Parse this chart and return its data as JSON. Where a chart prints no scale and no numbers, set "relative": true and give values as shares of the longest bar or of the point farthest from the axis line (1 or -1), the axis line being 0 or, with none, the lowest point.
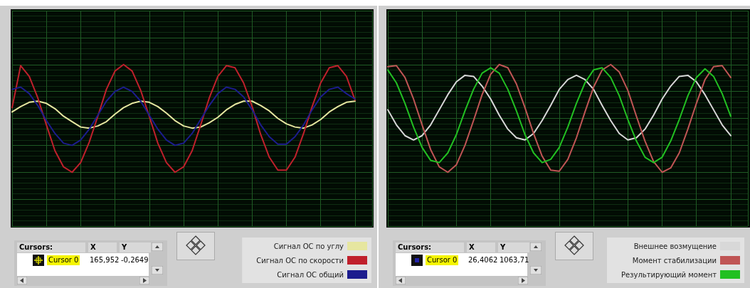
{
  "chart_data": [
    {
      "type": "line",
      "relative": true,
      "grid": true,
      "legend": "bottom right",
      "marker": "none",
      "line_style": "solid",
      "categories": [
        null,
        null,
        null,
        null,
        null,
        null,
        null,
        null,
        null,
        null,
        null,
        null,
        null,
        null,
        null,
        null,
        null,
        null,
        null,
        null,
        null,
        null,
        null,
        null,
        null,
        null,
        null,
        null,
        null,
        null,
        null,
        null,
        null,
        null,
        null,
        null,
        null,
        null,
        null,
        null,
        null,
        null,
        null
      ],
      "series": [
        {
          "name": "Сигнал ОС по углу",
          "color": "#e6e6a0",
          "values": [
            0.56,
            0.61,
            0.65,
            0.66,
            0.64,
            0.59,
            0.52,
            0.47,
            0.42,
            0.41,
            0.43,
            0.47,
            0.54,
            0.6,
            0.64,
            0.66,
            0.65,
            0.61,
            0.55,
            0.48,
            0.43,
            0.41,
            0.42,
            0.46,
            0.51,
            0.58,
            0.63,
            0.66,
            0.66,
            0.62,
            0.57,
            0.5,
            0.45,
            0.42,
            0.41,
            0.44,
            0.49,
            0.56,
            0.61,
            0.65,
            0.66,
            null,
            null
          ]
        },
        {
          "name": "Сигнал ОС по скорости",
          "color": "#c0202c",
          "values": [
            0.6,
            0.99,
            0.89,
            0.69,
            0.44,
            0.2,
            0.05,
            0.0,
            0.09,
            0.28,
            0.52,
            0.77,
            0.94,
            1.0,
            0.94,
            0.76,
            0.52,
            0.27,
            0.09,
            0.0,
            0.05,
            0.2,
            0.44,
            0.69,
            0.89,
            0.99,
            0.97,
            0.83,
            0.61,
            0.35,
            0.14,
            0.02,
            0.02,
            0.14,
            0.36,
            0.61,
            0.83,
            0.97,
            0.99,
            0.89,
            0.67,
            null,
            null
          ]
        },
        {
          "name": "Сигнал ОС общий",
          "color": "#1c1c8e",
          "values": [
            0.77,
            0.79,
            0.73,
            0.62,
            0.48,
            0.36,
            0.27,
            0.25,
            0.3,
            0.4,
            0.53,
            0.66,
            0.75,
            0.79,
            0.75,
            0.66,
            0.53,
            0.4,
            0.3,
            0.25,
            0.27,
            0.36,
            0.49,
            0.62,
            0.73,
            0.79,
            0.77,
            0.7,
            0.58,
            0.44,
            0.33,
            0.26,
            0.26,
            0.33,
            0.44,
            0.58,
            0.7,
            0.77,
            0.79,
            0.73,
            0.68,
            null,
            null
          ]
        }
      ],
      "annotations": [
        "Cursors:",
        "X",
        "Y",
        "Cursor 0",
        "165,952",
        "-0,2649"
      ]
    },
    {
      "type": "line",
      "relative": true,
      "grid": true,
      "legend": "bottom right",
      "marker": "none",
      "line_style": "solid",
      "categories": [
        null,
        null,
        null,
        null,
        null,
        null,
        null,
        null,
        null,
        null,
        null,
        null,
        null,
        null,
        null,
        null,
        null,
        null,
        null,
        null,
        null,
        null,
        null,
        null,
        null,
        null,
        null,
        null,
        null,
        null,
        null,
        null,
        null,
        null,
        null,
        null,
        null,
        null,
        null,
        null,
        null,
        null,
        null
      ],
      "series": [
        {
          "name": "Внешнее возмущение",
          "color": "#d8d8d8",
          "values": [
            0.58,
            0.44,
            0.34,
            0.3,
            0.34,
            0.44,
            0.58,
            0.72,
            0.84,
            0.9,
            0.89,
            0.8,
            0.68,
            0.53,
            0.4,
            0.32,
            0.3,
            0.36,
            0.48,
            0.62,
            0.77,
            0.86,
            0.9,
            0.86,
            0.77,
            0.62,
            0.48,
            0.36,
            0.3,
            0.32,
            0.4,
            0.53,
            0.68,
            0.8,
            0.89,
            0.9,
            0.84,
            0.72,
            0.58,
            0.44,
            0.34,
            null,
            null
          ]
        },
        {
          "name": "Момент стабилизации",
          "color": "#c05555",
          "values": [
            0.98,
            0.99,
            0.88,
            0.68,
            0.44,
            0.21,
            0.05,
            0.0,
            0.07,
            0.25,
            0.48,
            0.72,
            0.91,
            1.0,
            0.97,
            0.82,
            0.6,
            0.36,
            0.15,
            0.02,
            0.01,
            0.12,
            0.32,
            0.56,
            0.79,
            0.95,
            1.0,
            0.93,
            0.76,
            0.52,
            0.29,
            0.1,
            0.0,
            0.04,
            0.18,
            0.4,
            0.64,
            0.86,
            0.98,
            0.99,
            0.88,
            null,
            null
          ]
        },
        {
          "name": "Результирующий момент",
          "color": "#22c022",
          "values": [
            0.95,
            0.83,
            0.64,
            0.42,
            0.23,
            0.11,
            0.09,
            0.18,
            0.35,
            0.57,
            0.77,
            0.92,
            0.97,
            0.92,
            0.77,
            0.57,
            0.35,
            0.18,
            0.09,
            0.12,
            0.23,
            0.42,
            0.64,
            0.83,
            0.95,
            0.97,
            0.88,
            0.71,
            0.49,
            0.29,
            0.14,
            0.09,
            0.14,
            0.29,
            0.49,
            0.71,
            0.88,
            0.96,
            0.89,
            0.73,
            0.52,
            null,
            null
          ]
        }
      ],
      "annotations": [
        "Cursors:",
        "X",
        "Y",
        "Cursor 0",
        "26,4062",
        "1063,71"
      ]
    }
  ]
}
